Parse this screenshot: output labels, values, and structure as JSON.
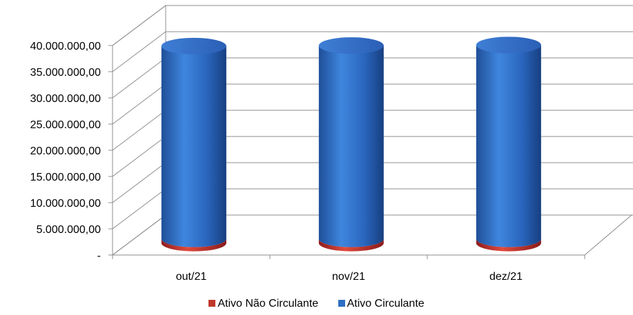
{
  "chart_data": {
    "type": "bar",
    "style": "3d-cylinder-stacked",
    "categories": [
      "out/21",
      "nov/21",
      "dez/21"
    ],
    "series": [
      {
        "name": "Ativo Não Circulante",
        "color": "#c0392b",
        "values": [
          800000,
          800000,
          800000
        ]
      },
      {
        "name": "Ativo Circulante",
        "color": "#2e6fc4",
        "values": [
          36800000,
          36900000,
          37000000
        ]
      }
    ],
    "yticks": [
      "-",
      "5.000.000,00",
      "10.000.000,00",
      "15.000.000,00",
      "20.000.000,00",
      "25.000.000,00",
      "30.000.000,00",
      "35.000.000,00",
      "40.000.000,00"
    ],
    "ylim": [
      0,
      40000000
    ],
    "grid": true,
    "legend_position": "bottom"
  }
}
